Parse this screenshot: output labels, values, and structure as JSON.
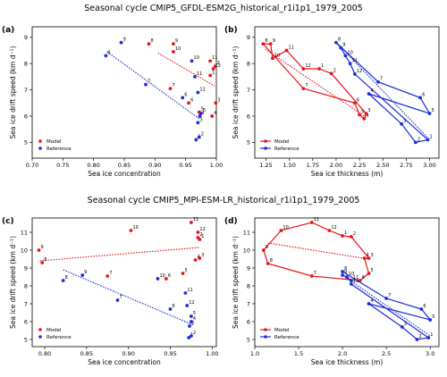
{
  "suptitles": [
    "Seasonal cycle CMIP5_GFDL-ESM2G_historical_r1i1p1_1979_2005",
    "Seasonal cycle CMIP5_MPI-ESM-LR_historical_r1i1p1_1979_2005"
  ],
  "colors": {
    "model": "#e8141b",
    "reference": "#1c2bd6"
  },
  "chart_data": [
    {
      "panel": "(a)",
      "type": "scatter",
      "xlabel": "Sea ice concentration",
      "ylabel": "Sea ice drift speed (km d⁻¹)",
      "xlim": [
        0.7,
        1.0
      ],
      "ylim": [
        4.4,
        9.4
      ],
      "xticks": [
        "0.70",
        "0.75",
        "0.80",
        "0.85",
        "0.90",
        "0.95",
        "1.00"
      ],
      "yticks": [
        "5",
        "6",
        "7",
        "8",
        "9"
      ],
      "legend": "lower-left",
      "grid": false,
      "series": [
        {
          "name": "Model",
          "points": [
            [
              0.99,
              7.55,
              "1"
            ],
            [
              0.998,
              7.9,
              "2"
            ],
            [
              0.999,
              6.5,
              "3"
            ],
            [
              0.993,
              6.0,
              "4"
            ],
            [
              0.972,
              6.15,
              "5"
            ],
            [
              0.955,
              6.5,
              "6"
            ],
            [
              0.925,
              7.05,
              "7"
            ],
            [
              0.89,
              8.75,
              "8"
            ],
            [
              0.93,
              8.75,
              "9"
            ],
            [
              0.93,
              8.45,
              "10"
            ],
            [
              0.99,
              8.1,
              "11"
            ],
            [
              0.995,
              7.8,
              "12"
            ]
          ],
          "trend": [
            [
              0.905,
              8.4
            ],
            [
              0.997,
              7.15
            ]
          ]
        },
        {
          "name": "Reference",
          "points": [
            [
              0.967,
              5.1,
              "1"
            ],
            [
              0.972,
              5.2,
              "2"
            ],
            [
              0.97,
              5.75,
              "3"
            ],
            [
              0.973,
              6.0,
              "4"
            ],
            [
              0.975,
              6.1,
              "5"
            ],
            [
              0.945,
              6.7,
              "6"
            ],
            [
              0.885,
              7.2,
              "7"
            ],
            [
              0.82,
              8.3,
              "8"
            ],
            [
              0.845,
              8.8,
              "9"
            ],
            [
              0.96,
              8.1,
              "10"
            ],
            [
              0.965,
              7.5,
              "11"
            ],
            [
              0.97,
              6.9,
              "12"
            ]
          ],
          "trend": [
            [
              0.822,
              8.45
            ],
            [
              0.972,
              5.9
            ]
          ]
        }
      ]
    },
    {
      "panel": "(b)",
      "type": "line",
      "xlabel": "Sea ice thickness (m)",
      "ylabel": "Sea ice drift speed (km d⁻¹)",
      "xlim": [
        1.13,
        3.1
      ],
      "ylim": [
        4.4,
        9.4
      ],
      "xticks": [
        "1.25",
        "1.50",
        "1.75",
        "2.00",
        "2.25",
        "2.50",
        "2.75",
        "3.00"
      ],
      "yticks": [
        "5",
        "6",
        "7",
        "8",
        "9"
      ],
      "legend": "lower-left",
      "grid": false,
      "series": [
        {
          "name": "Model",
          "points": [
            [
              1.82,
              7.8,
              "1"
            ],
            [
              1.95,
              7.62,
              "2"
            ],
            [
              2.32,
              6.1,
              "3"
            ],
            [
              2.3,
              5.9,
              "4"
            ],
            [
              2.25,
              6.05,
              "5"
            ],
            [
              2.2,
              6.5,
              "6"
            ],
            [
              1.65,
              7.05,
              "7"
            ],
            [
              1.22,
              8.75,
              "8"
            ],
            [
              1.3,
              8.75,
              "9"
            ],
            [
              1.32,
              8.2,
              "10"
            ],
            [
              1.47,
              8.5,
              "11"
            ],
            [
              1.65,
              7.8,
              "12"
            ]
          ],
          "trend": [
            [
              1.24,
              8.55
            ],
            [
              2.32,
              5.95
            ]
          ]
        },
        {
          "name": "Reference",
          "points": [
            [
              2.98,
              5.1,
              "1"
            ],
            [
              2.85,
              5.0,
              "2"
            ],
            [
              2.7,
              5.7,
              "3"
            ],
            [
              2.35,
              6.85,
              "4"
            ],
            [
              3.0,
              6.1,
              "5"
            ],
            [
              2.9,
              6.7,
              "6"
            ],
            [
              2.45,
              7.3,
              "7"
            ],
            [
              2.0,
              8.8,
              "8"
            ],
            [
              2.05,
              8.6,
              "9"
            ],
            [
              2.1,
              8.3,
              "10"
            ],
            [
              2.15,
              8.0,
              "11"
            ],
            [
              2.2,
              7.6,
              "12"
            ]
          ],
          "trend": [
            [
              2.03,
              8.7
            ],
            [
              3.0,
              5.1
            ]
          ]
        }
      ]
    },
    {
      "panel": "(c)",
      "type": "scatter",
      "xlabel": "Sea ice concentration",
      "ylabel": "Sea ice drift speed (km d⁻¹)",
      "xlim": [
        0.785,
        1.005
      ],
      "ylim": [
        4.6,
        11.8
      ],
      "xticks": [
        "0.80",
        "0.85",
        "0.90",
        "0.95",
        "1.00"
      ],
      "yticks": [
        "5",
        "6",
        "7",
        "8",
        "9",
        "10",
        "11"
      ],
      "legend": "lower-left",
      "grid": false,
      "series": [
        {
          "name": "Model",
          "points": [
            [
              0.985,
              10.6,
              "1"
            ],
            [
              0.983,
              10.7,
              "2"
            ],
            [
              0.985,
              9.55,
              "3"
            ],
            [
              0.98,
              9.45,
              "4"
            ],
            [
              0.965,
              8.7,
              "5"
            ],
            [
              0.945,
              8.4,
              "6"
            ],
            [
              0.875,
              8.55,
              "7"
            ],
            [
              0.797,
              9.3,
              "8"
            ],
            [
              0.793,
              10.0,
              "9"
            ],
            [
              0.903,
              11.1,
              "10"
            ],
            [
              0.975,
              11.55,
              "11"
            ],
            [
              0.983,
              11.0,
              "12"
            ]
          ],
          "trend": [
            [
              0.794,
              9.4
            ],
            [
              0.985,
              10.15
            ]
          ]
        },
        {
          "name": "Reference",
          "points": [
            [
              0.972,
              5.1,
              "1"
            ],
            [
              0.975,
              5.2,
              "2"
            ],
            [
              0.973,
              5.75,
              "3"
            ],
            [
              0.975,
              6.0,
              "4"
            ],
            [
              0.975,
              6.3,
              "5"
            ],
            [
              0.95,
              6.7,
              "6"
            ],
            [
              0.887,
              7.2,
              "7"
            ],
            [
              0.822,
              8.3,
              "8"
            ],
            [
              0.845,
              8.6,
              "9"
            ],
            [
              0.935,
              8.4,
              "10"
            ],
            [
              0.968,
              7.6,
              "11"
            ],
            [
              0.97,
              6.9,
              "12"
            ]
          ],
          "trend": [
            [
              0.822,
              8.9
            ],
            [
              0.978,
              5.8
            ]
          ]
        }
      ]
    },
    {
      "panel": "(d)",
      "type": "line",
      "xlabel": "Sea ice thickness (m)",
      "ylabel": "Sea ice drift speed (km d⁻¹)",
      "xlim": [
        1.0,
        3.1
      ],
      "ylim": [
        4.6,
        11.8
      ],
      "xticks": [
        "1.0",
        "1.5",
        "2.0",
        "2.5",
        "3.0"
      ],
      "yticks": [
        "5",
        "6",
        "7",
        "8",
        "9",
        "10",
        "11"
      ],
      "legend": "lower-left",
      "grid": false,
      "series": [
        {
          "name": "Model",
          "points": [
            [
              2.0,
              10.8,
              "1"
            ],
            [
              2.1,
              10.75,
              "2"
            ],
            [
              2.3,
              9.55,
              "3"
            ],
            [
              2.25,
              9.55,
              "4"
            ],
            [
              2.3,
              8.7,
              "5"
            ],
            [
              2.2,
              8.3,
              "6"
            ],
            [
              1.65,
              8.55,
              "7"
            ],
            [
              1.15,
              9.25,
              "8"
            ],
            [
              1.1,
              10.0,
              "9"
            ],
            [
              1.3,
              11.1,
              "10"
            ],
            [
              1.65,
              11.55,
              "11"
            ],
            [
              1.85,
              11.1,
              "12"
            ]
          ],
          "trend": [
            [
              1.15,
              10.4
            ],
            [
              2.3,
              9.5
            ]
          ]
        },
        {
          "name": "Reference",
          "points": [
            [
              2.98,
              5.1,
              "1"
            ],
            [
              2.85,
              5.0,
              "2"
            ],
            [
              2.68,
              5.7,
              "3"
            ],
            [
              2.3,
              7.0,
              "4"
            ],
            [
              3.0,
              6.1,
              "5"
            ],
            [
              2.9,
              6.7,
              "6"
            ],
            [
              2.5,
              7.3,
              "7"
            ],
            [
              2.0,
              8.8,
              "8"
            ],
            [
              2.0,
              8.6,
              "9"
            ],
            [
              2.05,
              8.5,
              "10"
            ],
            [
              2.1,
              8.3,
              "11"
            ],
            [
              2.1,
              8.1,
              "12"
            ]
          ],
          "trend": [
            [
              2.0,
              8.6
            ],
            [
              3.0,
              5.2
            ]
          ]
        }
      ]
    }
  ]
}
